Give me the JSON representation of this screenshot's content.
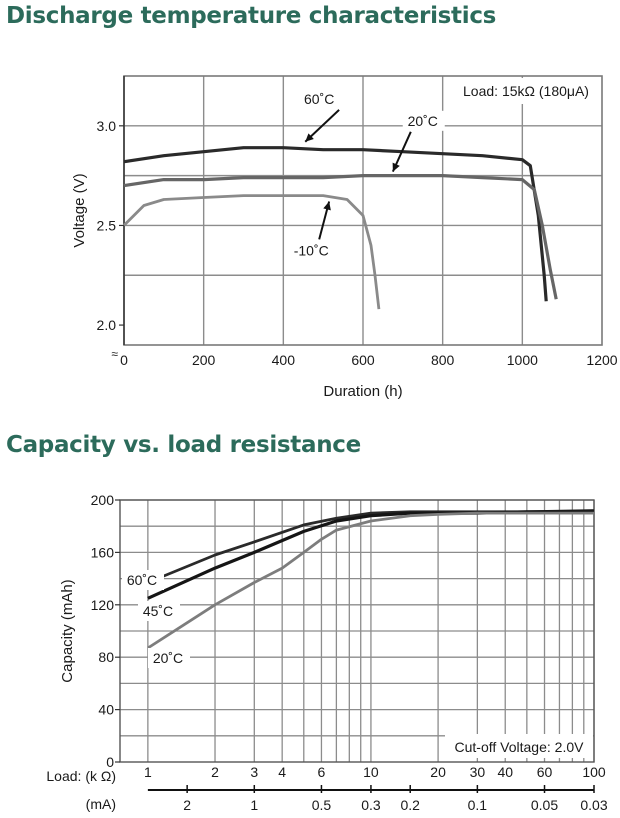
{
  "charts": [
    {
      "heading": "Discharge temperature characteristics",
      "type": "line",
      "xlabel": "Duration (h)",
      "ylabel": "Voltage (V)",
      "xlim": [
        0,
        1200
      ],
      "ylim": [
        1.9,
        3.25
      ],
      "x_ticks": [
        0,
        200,
        400,
        600,
        800,
        1000,
        1200
      ],
      "y_ticks": [
        2.0,
        2.5,
        3.0
      ],
      "y_tick_labels": [
        "2.0",
        "2.5",
        "3.0"
      ],
      "x_gridlines": [
        200,
        400,
        600,
        800,
        1000
      ],
      "y_gridlines": [
        2.25,
        2.5,
        2.75,
        3.0
      ],
      "grid": true,
      "axis_break_symbol": "≈",
      "annotation": "Load: 15kΩ (180μA)",
      "series": [
        {
          "name": "60˚C",
          "color": "#2a2a2a",
          "x": [
            0,
            100,
            200,
            300,
            400,
            500,
            600,
            700,
            800,
            900,
            1000,
            1020,
            1040,
            1055,
            1060
          ],
          "y": [
            2.82,
            2.85,
            2.87,
            2.89,
            2.89,
            2.88,
            2.88,
            2.87,
            2.86,
            2.85,
            2.83,
            2.8,
            2.55,
            2.25,
            2.12
          ]
        },
        {
          "name": "20˚C",
          "color": "#666666",
          "x": [
            0,
            100,
            200,
            300,
            400,
            500,
            600,
            700,
            800,
            900,
            1000,
            1030,
            1050,
            1070,
            1085
          ],
          "y": [
            2.7,
            2.73,
            2.73,
            2.74,
            2.74,
            2.74,
            2.75,
            2.75,
            2.75,
            2.74,
            2.73,
            2.68,
            2.5,
            2.28,
            2.13
          ]
        },
        {
          "name": "-10˚C",
          "color": "#8a8a8a",
          "x": [
            0,
            50,
            100,
            200,
            300,
            400,
            500,
            560,
            600,
            620,
            630,
            640
          ],
          "y": [
            2.5,
            2.6,
            2.63,
            2.64,
            2.65,
            2.65,
            2.65,
            2.63,
            2.55,
            2.4,
            2.25,
            2.08
          ]
        }
      ],
      "series_labels": [
        "60˚C",
        "20˚C",
        "-10˚C"
      ]
    },
    {
      "heading": "Capacity vs. load resistance",
      "type": "line",
      "xscale": "log",
      "xlabel": "",
      "ylabel": "Capacity (mAh)",
      "xlim": [
        0.75,
        100
      ],
      "ylim": [
        0,
        200
      ],
      "y_ticks": [
        0,
        40,
        80,
        120,
        160,
        200
      ],
      "y_tick_labels": [
        "0",
        "40",
        "80",
        "120",
        "160",
        "200"
      ],
      "y_gridlines": [
        20,
        40,
        60,
        80,
        100,
        120,
        140,
        160,
        180,
        200
      ],
      "x_gridlines": [
        1,
        2,
        3,
        4,
        5,
        6,
        7,
        8,
        9,
        10,
        20,
        30,
        40,
        50,
        60,
        70,
        80,
        90,
        100
      ],
      "x_tick_label_kohm": [
        "1",
        "2",
        "3",
        "4",
        "6",
        "10",
        "20",
        "30",
        "40",
        "60",
        "100"
      ],
      "x_tick_pos_kohm": [
        1,
        2,
        3,
        4,
        6,
        10,
        20,
        30,
        40,
        60,
        100
      ],
      "x_tick_label_ma": [
        "2",
        "1",
        "0.5",
        "0.3",
        "0.2",
        "0.1",
        "0.05",
        "0.03"
      ],
      "x_tick_pos_ma": [
        1.5,
        3,
        6,
        10,
        15,
        30,
        60,
        100
      ],
      "load_kohm_label": "Load: (k Ω)",
      "load_ma_label": "(mA)",
      "grid": true,
      "annotation": "Cut-off Voltage: 2.0V",
      "series": [
        {
          "name": "60˚C",
          "color": "#2a2a2a",
          "x": [
            1,
            2,
            3,
            5,
            7,
            10,
            15,
            20,
            30,
            50,
            100
          ],
          "y": [
            137,
            158,
            168,
            181,
            186,
            190,
            191,
            191,
            191,
            191,
            192
          ]
        },
        {
          "name": "45˚C",
          "color": "#151515",
          "x": [
            1,
            2,
            3,
            5,
            7,
            10,
            15,
            20,
            30,
            50,
            100
          ],
          "y": [
            125,
            148,
            160,
            176,
            184,
            188,
            190,
            190,
            190,
            191,
            191
          ]
        },
        {
          "name": "20˚C",
          "color": "#7d7d7d",
          "x": [
            1,
            2,
            3,
            4,
            5,
            6,
            7,
            10,
            15,
            20,
            30,
            100
          ],
          "y": [
            87,
            120,
            137,
            148,
            160,
            170,
            177,
            184,
            188,
            189,
            190,
            190
          ]
        }
      ],
      "series_labels": [
        "60˚C",
        "45˚C",
        "20˚C"
      ]
    }
  ]
}
